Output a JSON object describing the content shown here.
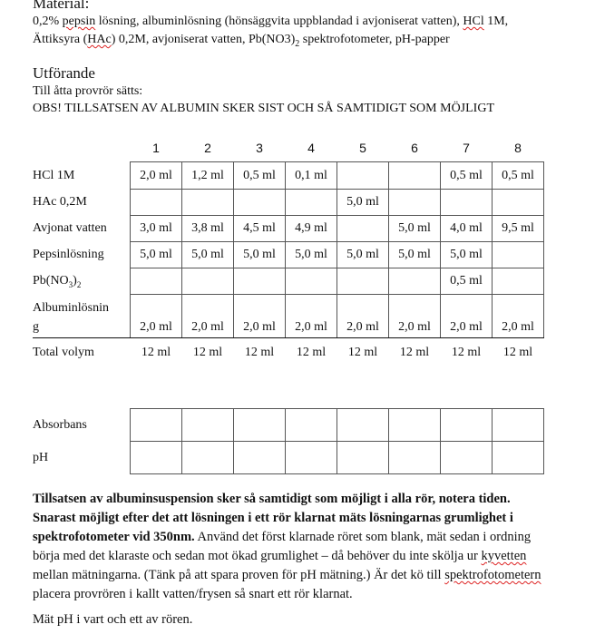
{
  "material": {
    "heading": "Material:",
    "line1": [
      "0,2% ",
      "pepsin",
      " lösning, albuminlösning (hönsäggvita uppblandad i avjoniserat vatten), ",
      "HCl",
      " 1M,"
    ],
    "line2": [
      "Ättiksyra (",
      "HAc",
      ") 0,2M, avjoniserat vatten, Pb(NO3)",
      "2",
      " spektrofotometer, pH-papper"
    ]
  },
  "procedure": {
    "heading": "Utförande",
    "intro": "Till åtta provrör sätts:",
    "warning": "OBS! TILLSATSEN AV ALBUMIN SKER SIST OCH SÅ SAMTIDIGT SOM MÖJLIGT"
  },
  "table": {
    "columns": [
      "1",
      "2",
      "3",
      "4",
      "5",
      "6",
      "7",
      "8"
    ],
    "rows": [
      {
        "label": "HCl 1M",
        "values": [
          "2,0 ml",
          "1,2 ml",
          "0,5 ml",
          "0,1 ml",
          "",
          "",
          "0,5 ml",
          "0,5 ml"
        ]
      },
      {
        "label": "HAc 0,2M",
        "values": [
          "",
          "",
          "",
          "",
          "5,0 ml",
          "",
          "",
          ""
        ]
      },
      {
        "label": "Avjonat vatten",
        "values": [
          "3,0 ml",
          "3,8 ml",
          "4,5 ml",
          "4,9 ml",
          "",
          "5,0 ml",
          "4,0 ml",
          "9,5 ml"
        ]
      },
      {
        "label": "Pepsinlösning",
        "values": [
          "5,0 ml",
          "5,0 ml",
          "5,0 ml",
          "5,0 ml",
          "5,0 ml",
          "5,0 ml",
          "5,0 ml",
          ""
        ]
      },
      {
        "label": "Pb(NO",
        "label_sub1": "3",
        "label_mid": ")",
        "label_sub2": "2",
        "values": [
          "",
          "",
          "",
          "",
          "",
          "",
          "0,5 ml",
          ""
        ]
      },
      {
        "label": "Albuminlösnin",
        "label2": "g",
        "values": [
          "2,0 ml",
          "2,0 ml",
          "2,0 ml",
          "2,0 ml",
          "2,0 ml",
          "2,0 ml",
          "2,0 ml",
          "2,0 ml"
        ]
      }
    ],
    "total": {
      "label": "Total volym",
      "values": [
        "12 ml",
        "12 ml",
        "12 ml",
        "12 ml",
        "12 ml",
        "12 ml",
        "12 ml",
        "12 ml"
      ]
    }
  },
  "results": {
    "rows": [
      "Absorbans",
      "pH"
    ]
  },
  "instructions": {
    "bold": "Tillsatsen av albuminsuspension sker så samtidigt som möjligt i alla rör, notera tiden. Snarast möjligt efter det att lösningen i ett rör klarnat mäts lösningarnas grumlighet i spektrofotometer vid 350nm.",
    "text1": " Använd det först klarnade röret som blank, mät sedan i ordning börja med det klaraste och sedan mot ökad grumlighet – då behöver du inte skölja ur ",
    "kyvetten": "kyvetten",
    "text2": " mellan mätningarna. (Tänk på att spara proven för pH mätning.) Är det kö till ",
    "spektro": "spektrofotometern",
    "text3": " placera provrören i kallt vatten/frysen så snart ett rör klarnat.",
    "final": "Mät pH i vart och ett av rören."
  }
}
